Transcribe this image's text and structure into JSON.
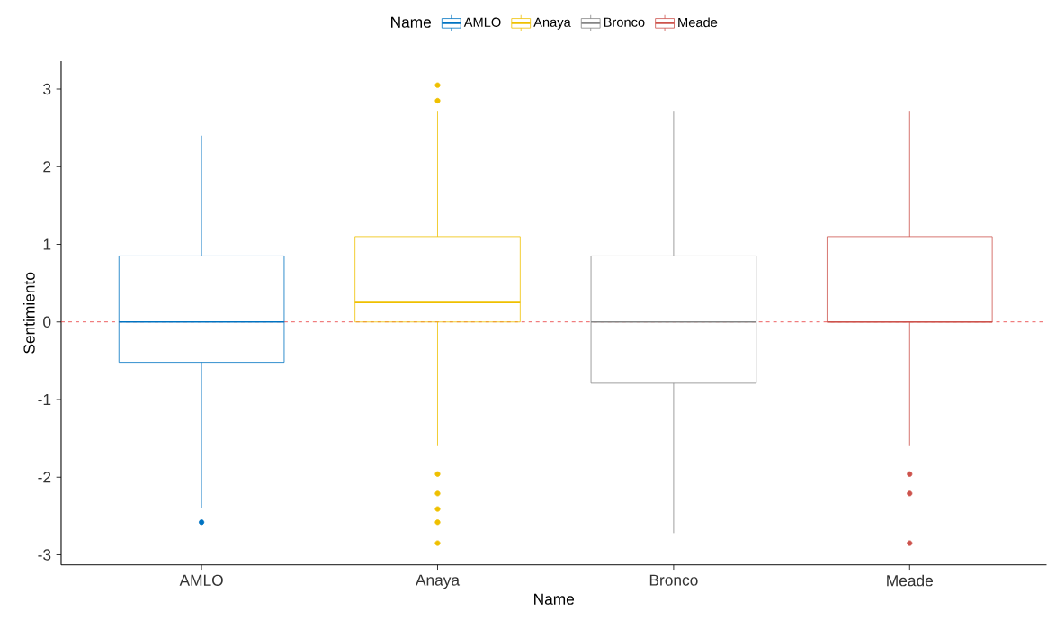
{
  "chart_data": {
    "type": "box",
    "xlabel": "Name",
    "ylabel": "Sentimiento",
    "legend_title": "Name",
    "legend": "top",
    "categories": [
      "AMLO",
      "Anaya",
      "Bronco",
      "Meade"
    ],
    "series": [
      {
        "name": "AMLO",
        "color": "#0073c2",
        "boxes": [
          {
            "low": -2.4,
            "q1": -0.52,
            "median": 0,
            "q3": 0.85,
            "high": 2.4,
            "outliers": [
              -2.58
            ]
          },
          null,
          null,
          null
        ]
      },
      {
        "name": "Anaya",
        "color": "#efc000",
        "boxes": [
          null,
          {
            "low": -1.6,
            "q1": 0,
            "median": 0.25,
            "q3": 1.1,
            "high": 2.72,
            "outliers": [
              3.05,
              2.85,
              -1.96,
              -2.21,
              -2.41,
              -2.58,
              -2.85
            ]
          },
          null,
          null
        ]
      },
      {
        "name": "Bronco",
        "color": "#868686",
        "boxes": [
          null,
          null,
          {
            "low": -2.72,
            "q1": -0.79,
            "median": 0,
            "q3": 0.85,
            "high": 2.72
          },
          null
        ]
      },
      {
        "name": "Meade",
        "color": "#cd534c",
        "boxes": [
          null,
          null,
          null,
          {
            "low": -1.6,
            "q1": 0,
            "median": 0,
            "q3": 1.1,
            "high": 2.72,
            "outliers": [
              -1.96,
              -2.21,
              -2.85
            ]
          }
        ]
      }
    ],
    "ylim": [
      -3.13,
      3.36
    ],
    "yticks": [
      -3,
      -2,
      -1,
      0,
      1,
      2,
      3
    ],
    "grid": false,
    "ref_lines": [
      {
        "axis": "y",
        "value": 0,
        "color": "#e41a1c",
        "line_style": "dashed"
      }
    ]
  }
}
